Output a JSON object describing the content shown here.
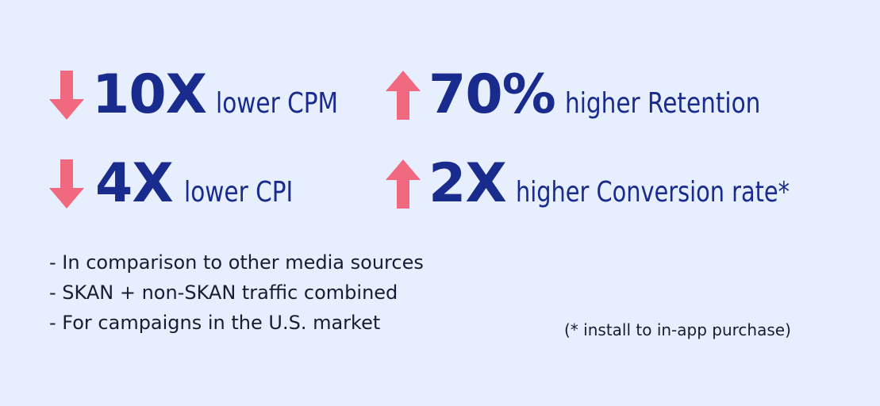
{
  "colors": {
    "background": "#e7efff",
    "headline": "#1a2b8e",
    "arrow": "#f0697f",
    "note_text": "#161c33"
  },
  "stats": [
    {
      "direction": "down",
      "arrow_icon": "arrow-down-icon",
      "value": "10X",
      "label": "lower CPM"
    },
    {
      "direction": "up",
      "arrow_icon": "arrow-up-icon",
      "value": "70%",
      "label": "higher Retention"
    },
    {
      "direction": "down",
      "arrow_icon": "arrow-down-icon",
      "value": "4X",
      "label": "lower CPI"
    },
    {
      "direction": "up",
      "arrow_icon": "arrow-up-icon",
      "value": "2X",
      "label": "higher Conversion rate*"
    }
  ],
  "notes": [
    "- In comparison to other media sources",
    "- SKAN + non-SKAN traffic combined",
    "- For campaigns in the U.S. market"
  ],
  "footnote": "(* install to in-app purchase)"
}
